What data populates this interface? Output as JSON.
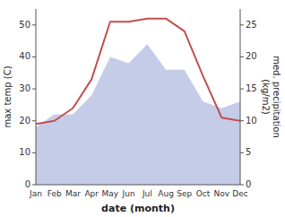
{
  "chart_data": {
    "type": "line",
    "categories": [
      "Jan",
      "Feb",
      "Mar",
      "Apr",
      "May",
      "Jun",
      "Jul",
      "Aug",
      "Sep",
      "Oct",
      "Nov",
      "Dec"
    ],
    "xlabel": "date (month)",
    "ylabel": "max temp (C)",
    "y2label": "med. precipitation\n(kg/m2)",
    "ylim": [
      0,
      55
    ],
    "yticks": [
      0,
      10,
      20,
      30,
      40,
      50
    ],
    "y2lim": [
      0,
      27.5
    ],
    "y2ticks": [
      0,
      5,
      10,
      15,
      20,
      25
    ],
    "series": [
      {
        "type": "area",
        "axis": "y2",
        "color": "#c5cce8",
        "values": [
          9,
          11,
          11,
          14,
          20,
          19,
          22,
          18,
          18,
          13,
          12,
          13
        ]
      },
      {
        "type": "line",
        "color": "#c0504d",
        "values": [
          19,
          20,
          24,
          33,
          51,
          51,
          52,
          52,
          48,
          34,
          21,
          20
        ]
      }
    ]
  }
}
